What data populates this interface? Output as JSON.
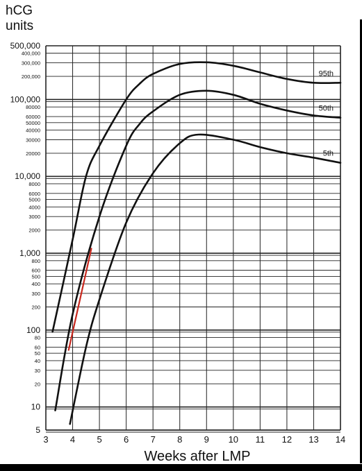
{
  "chart_data": {
    "type": "line",
    "title": "",
    "ylabel_lines": [
      "hCG",
      "units"
    ],
    "xlabel": "Weeks after LMP",
    "y_scale": "log",
    "xlim": [
      3,
      14
    ],
    "ylim": [
      5,
      500000
    ],
    "x_ticks": [
      3,
      4,
      5,
      6,
      7,
      8,
      9,
      10,
      11,
      12,
      13,
      14
    ],
    "y_tick_labels": [
      {
        "v": 5,
        "label": "5",
        "size": "large"
      },
      {
        "v": 10,
        "label": "10",
        "size": "large"
      },
      {
        "v": 20,
        "label": "20",
        "size": "small"
      },
      {
        "v": 30,
        "label": "30",
        "size": "small"
      },
      {
        "v": 40,
        "label": "40",
        "size": "small"
      },
      {
        "v": 50,
        "label": "50",
        "size": "small"
      },
      {
        "v": 60,
        "label": "60",
        "size": "small"
      },
      {
        "v": 80,
        "label": "80",
        "size": "small"
      },
      {
        "v": 100,
        "label": "100",
        "size": "large"
      },
      {
        "v": 200,
        "label": "200",
        "size": "small"
      },
      {
        "v": 300,
        "label": "300",
        "size": "small"
      },
      {
        "v": 400,
        "label": "400",
        "size": "small"
      },
      {
        "v": 500,
        "label": "500",
        "size": "small"
      },
      {
        "v": 600,
        "label": "600",
        "size": "small"
      },
      {
        "v": 800,
        "label": "800",
        "size": "small"
      },
      {
        "v": 1000,
        "label": "1,000",
        "size": "large"
      },
      {
        "v": 2000,
        "label": "2000",
        "size": "small"
      },
      {
        "v": 3000,
        "label": "3000",
        "size": "small"
      },
      {
        "v": 4000,
        "label": "4000",
        "size": "small"
      },
      {
        "v": 5000,
        "label": "5000",
        "size": "small"
      },
      {
        "v": 6000,
        "label": "6000",
        "size": "small"
      },
      {
        "v": 8000,
        "label": "8000",
        "size": "small"
      },
      {
        "v": 10000,
        "label": "10,000",
        "size": "large"
      },
      {
        "v": 20000,
        "label": "20000",
        "size": "small"
      },
      {
        "v": 30000,
        "label": "30000",
        "size": "small"
      },
      {
        "v": 40000,
        "label": "40000",
        "size": "small"
      },
      {
        "v": 50000,
        "label": "50000",
        "size": "small"
      },
      {
        "v": 60000,
        "label": "60000",
        "size": "small"
      },
      {
        "v": 80000,
        "label": "80000",
        "size": "small"
      },
      {
        "v": 100000,
        "label": "100,000",
        "size": "large"
      },
      {
        "v": 200000,
        "label": "200,000",
        "size": "small"
      },
      {
        "v": 300000,
        "label": "300,000",
        "size": "small"
      },
      {
        "v": 400000,
        "label": "400,000",
        "size": "small"
      },
      {
        "v": 500000,
        "label": "500,000",
        "size": "large"
      }
    ],
    "grid": true,
    "series": [
      {
        "name": "95th",
        "color": "#111111",
        "points": [
          [
            3.25,
            95
          ],
          [
            4.0,
            1500
          ],
          [
            4.5,
            10000
          ],
          [
            5.0,
            25000
          ],
          [
            6.0,
            100000
          ],
          [
            6.5,
            160000
          ],
          [
            7.0,
            215000
          ],
          [
            8.0,
            290000
          ],
          [
            9.0,
            305000
          ],
          [
            10.0,
            275000
          ],
          [
            11.0,
            225000
          ],
          [
            12.0,
            185000
          ],
          [
            13.0,
            165000
          ],
          [
            14.0,
            165000
          ]
        ]
      },
      {
        "name": "50th",
        "color": "#111111",
        "points": [
          [
            3.35,
            9
          ],
          [
            4.0,
            160
          ],
          [
            5.0,
            3000
          ],
          [
            6.0,
            25000
          ],
          [
            6.5,
            48000
          ],
          [
            7.0,
            70000
          ],
          [
            8.0,
            115000
          ],
          [
            9.0,
            130000
          ],
          [
            10.0,
            115000
          ],
          [
            11.0,
            88000
          ],
          [
            12.0,
            72000
          ],
          [
            13.0,
            62000
          ],
          [
            14.0,
            58000
          ]
        ]
      },
      {
        "name": "5th",
        "color": "#111111",
        "points": [
          [
            3.9,
            6
          ],
          [
            4.5,
            60
          ],
          [
            5.0,
            250
          ],
          [
            6.0,
            2500
          ],
          [
            7.0,
            11000
          ],
          [
            8.0,
            27000
          ],
          [
            8.7,
            35000
          ],
          [
            10.0,
            30000
          ],
          [
            11.0,
            24000
          ],
          [
            12.0,
            20000
          ],
          [
            13.0,
            17500
          ],
          [
            14.0,
            15000
          ]
        ]
      },
      {
        "name": "",
        "color": "#c8281e",
        "points": [
          [
            3.85,
            55
          ],
          [
            4.7,
            1150
          ]
        ]
      }
    ]
  }
}
